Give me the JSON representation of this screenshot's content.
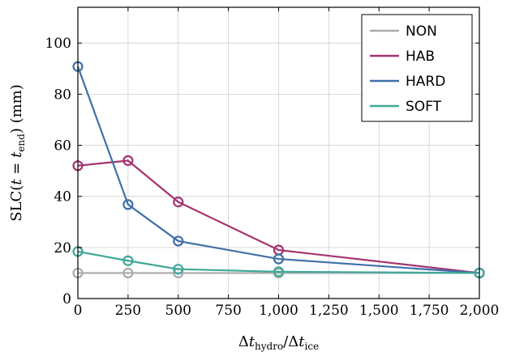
{
  "chart_data": {
    "type": "line",
    "title": "",
    "xlabel": "Δt_hydro/Δt_ice",
    "ylabel": "SLC(t = t_end) (mm)",
    "xlim": [
      0,
      2000
    ],
    "ylim": [
      0,
      114
    ],
    "x": [
      0,
      250,
      500,
      1000,
      2000
    ],
    "xticks": [
      0,
      250,
      500,
      750,
      1000,
      1250,
      1500,
      1750,
      2000
    ],
    "xtick_labels": [
      "0",
      "250",
      "500",
      "750",
      "1,000",
      "1,250",
      "1,500",
      "1,750",
      "2,000"
    ],
    "yticks": [
      0,
      20,
      40,
      60,
      80,
      100
    ],
    "ytick_labels": [
      "0",
      "20",
      "40",
      "60",
      "80",
      "100"
    ],
    "grid": true,
    "legend_position": "top-right",
    "series": [
      {
        "name": "NON",
        "color": "#aaaaaa",
        "values": [
          10,
          10,
          10,
          10,
          10
        ]
      },
      {
        "name": "HAB",
        "color": "#a4336f",
        "values": [
          52,
          54,
          37.8,
          19,
          10
        ]
      },
      {
        "name": "HARD",
        "color": "#3e6fa8",
        "values": [
          90.8,
          36.8,
          22.5,
          15.5,
          10
        ]
      },
      {
        "name": "SOFT",
        "color": "#3fa898",
        "values": [
          18.4,
          14.8,
          11.5,
          10.5,
          10
        ]
      }
    ]
  }
}
